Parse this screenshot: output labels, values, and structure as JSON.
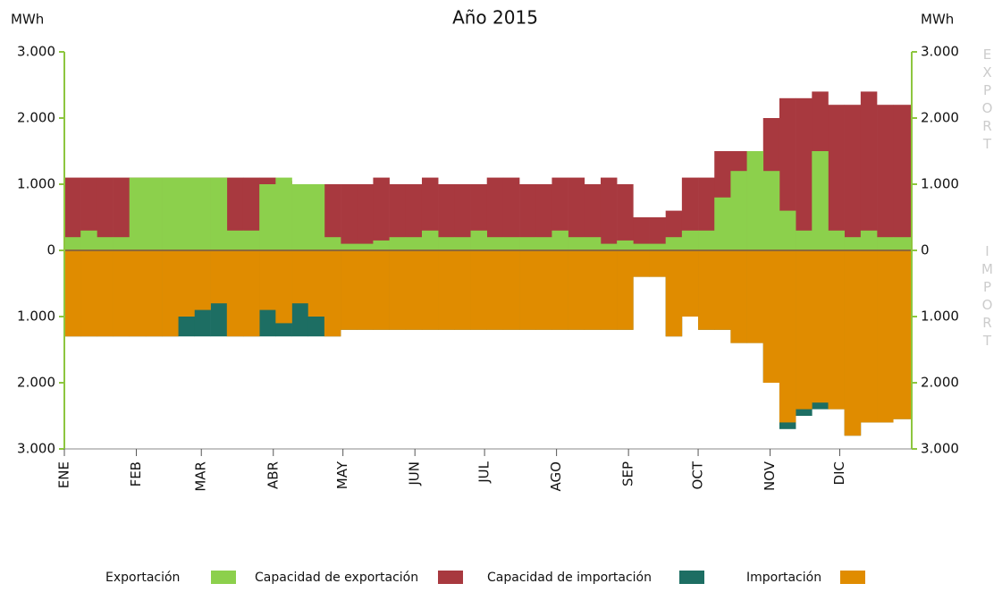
{
  "chart_data": {
    "type": "bar",
    "title": "Año 2015",
    "y_label": "MWh",
    "y2_label": "MWh",
    "side_labels": [
      "EXPORT",
      "IMPORT"
    ],
    "xlim": [
      0,
      365
    ],
    "xticks": [
      {
        "value": 0,
        "label": "ENE"
      },
      {
        "value": 31,
        "label": "FEB"
      },
      {
        "value": 59,
        "label": "MAR"
      },
      {
        "value": 90,
        "label": "ABR"
      },
      {
        "value": 120,
        "label": "MAY"
      },
      {
        "value": 151,
        "label": "JUN"
      },
      {
        "value": 181,
        "label": "JUL"
      },
      {
        "value": 212,
        "label": "AGO"
      },
      {
        "value": 243,
        "label": "SEP"
      },
      {
        "value": 273,
        "label": "OCT"
      },
      {
        "value": 304,
        "label": "NOV"
      },
      {
        "value": 334,
        "label": "DIC"
      }
    ],
    "ylim": [
      -3000,
      3000
    ],
    "yticks": [
      {
        "value": 3000,
        "label": "3.000"
      },
      {
        "value": 2000,
        "label": "2.000"
      },
      {
        "value": 1000,
        "label": "1.000"
      },
      0,
      {
        "value": -1000,
        "label": "1.000"
      },
      {
        "value": -2000,
        "label": "2.000"
      },
      {
        "value": -3000,
        "label": "3.000"
      }
    ],
    "x": [
      0,
      7,
      14,
      21,
      28,
      35,
      42,
      49,
      56,
      63,
      70,
      77,
      84,
      91,
      98,
      105,
      112,
      119,
      126,
      133,
      140,
      147,
      154,
      161,
      168,
      175,
      182,
      189,
      196,
      203,
      210,
      217,
      224,
      231,
      238,
      245,
      252,
      259,
      266,
      273,
      280,
      287,
      294,
      301,
      308,
      315,
      322,
      329,
      336,
      343,
      350,
      357
    ],
    "series": [
      {
        "name": "Exportación",
        "color": "#8cd04c",
        "values": [
          200,
          300,
          200,
          200,
          1100,
          1100,
          1100,
          1100,
          1100,
          1100,
          300,
          300,
          1000,
          1100,
          1000,
          1000,
          200,
          100,
          100,
          150,
          200,
          200,
          300,
          200,
          200,
          300,
          200,
          200,
          200,
          200,
          300,
          200,
          200,
          100,
          150,
          100,
          100,
          200,
          300,
          300,
          800,
          1200,
          1500,
          1200,
          600,
          300,
          1500,
          300,
          200,
          300,
          200,
          200
        ]
      },
      {
        "name": "Capacidad de exportación",
        "color": "#a8393f",
        "values": [
          1100,
          1100,
          1100,
          1100,
          1100,
          1100,
          1100,
          1100,
          1100,
          1100,
          1100,
          1100,
          1100,
          1050,
          1000,
          1000,
          1000,
          1000,
          1000,
          1100,
          1000,
          1000,
          1100,
          1000,
          1000,
          1000,
          1100,
          1100,
          1000,
          1000,
          1100,
          1100,
          1000,
          1100,
          1000,
          500,
          500,
          600,
          1100,
          1100,
          1500,
          1500,
          1500,
          2000,
          2300,
          2300,
          2400,
          2200,
          2200,
          2400,
          2200,
          2200
        ]
      },
      {
        "name": "Capacidad de importación",
        "color": "#1d6e63",
        "values": [
          -1300,
          -1300,
          -1300,
          -1300,
          -1300,
          -1300,
          -1300,
          -1300,
          -1300,
          -1300,
          -1300,
          -1300,
          -1300,
          -1300,
          -1300,
          -1300,
          -1300,
          -1200,
          -1200,
          -1200,
          -1200,
          -1200,
          -1200,
          -1200,
          -1200,
          -1200,
          -1200,
          -1200,
          -1200,
          -1200,
          -1200,
          -1200,
          -1200,
          -1200,
          -1200,
          -400,
          -400,
          -1300,
          -1000,
          -1200,
          -1200,
          -1400,
          -1400,
          -2000,
          -2700,
          -2500,
          -2400,
          -2400,
          -2800,
          -2600,
          -2600,
          -2550
        ]
      },
      {
        "name": "Importación",
        "color": "#e08c00",
        "values": [
          -1300,
          -1300,
          -1300,
          -1300,
          -1300,
          -1300,
          -1300,
          -1000,
          -900,
          -800,
          -1300,
          -1300,
          -900,
          -1100,
          -800,
          -1000,
          -1300,
          -1200,
          -1200,
          -1200,
          -1200,
          -1200,
          -1200,
          -1200,
          -1200,
          -1200,
          -1200,
          -1200,
          -1200,
          -1200,
          -1200,
          -1200,
          -1200,
          -1200,
          -1200,
          -400,
          -400,
          -1300,
          -1000,
          -1200,
          -1200,
          -1400,
          -1400,
          -2000,
          -2600,
          -2400,
          -2300,
          -2400,
          -2800,
          -2600,
          -2600,
          -2550
        ]
      }
    ],
    "draw_order": [
      1,
      0,
      2,
      3
    ],
    "axis_color": "#8dc63f"
  }
}
